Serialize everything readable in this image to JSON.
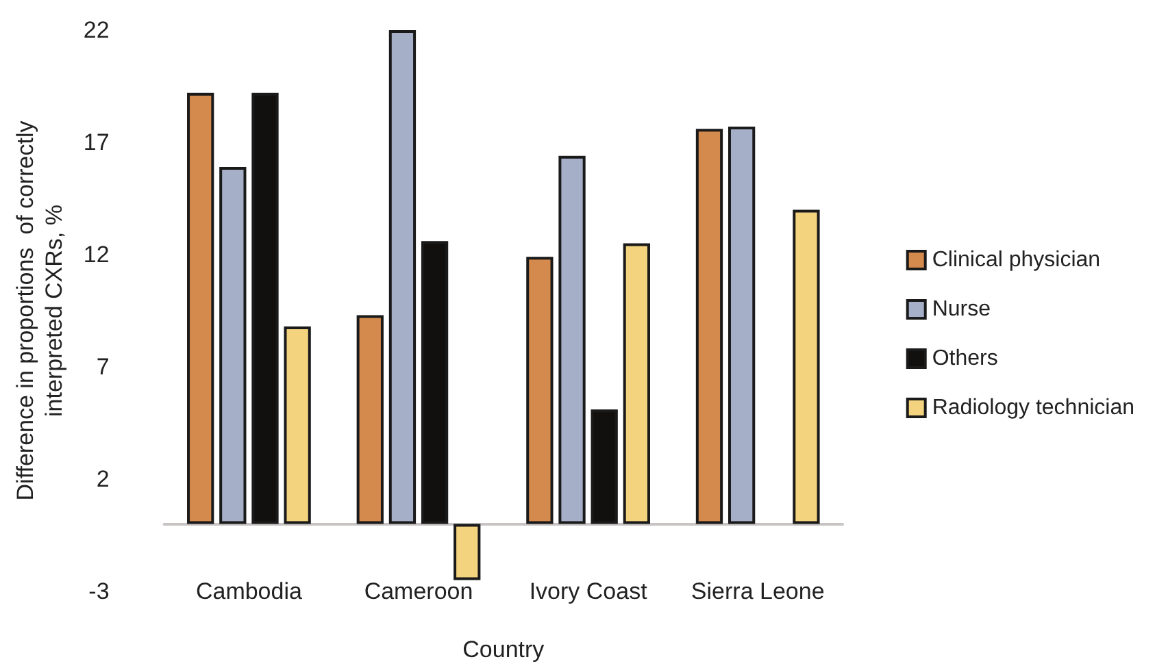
{
  "chart_data": {
    "type": "bar",
    "xlabel": "Country",
    "ylabel": "Difference in proportions  of correctly\ninterpreted CXRs, %",
    "categories": [
      "Cambodia",
      "Cameroon",
      "Ivory Coast",
      "Sierra Leone"
    ],
    "series": [
      {
        "name": "Clinical physician",
        "color": "#d4894d",
        "values": [
          19.2,
          9.3,
          11.9,
          17.6
        ]
      },
      {
        "name": "Nurse",
        "color": "#a5b0c8",
        "values": [
          15.9,
          22,
          16.4,
          17.7
        ]
      },
      {
        "name": "Others",
        "color": "#12100f",
        "values": [
          19.2,
          12.6,
          5.1,
          null
        ]
      },
      {
        "name": "Radiology technician",
        "color": "#f4d37f",
        "values": [
          8.8,
          -2.5,
          12.5,
          14.0
        ]
      }
    ],
    "ylim": [
      -3,
      22
    ],
    "yticks": [
      -3,
      2,
      7,
      12,
      17,
      22
    ],
    "grid": false,
    "legend": "right"
  }
}
